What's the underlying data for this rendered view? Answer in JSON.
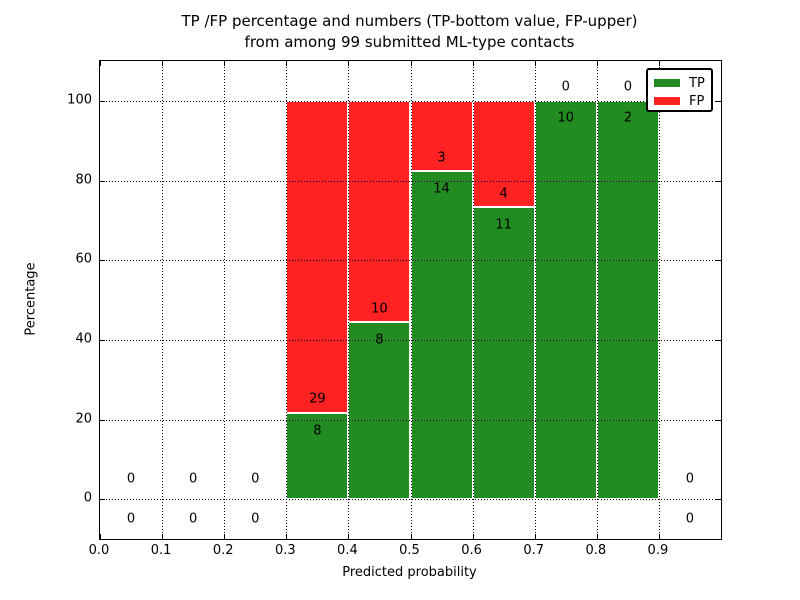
{
  "chart_data": {
    "type": "bar",
    "stacked": true,
    "title_lines": [
      "TP /FP percentage and numbers (TP-bottom value, FP-upper)",
      "from among 99 submitted ML-type contacts"
    ],
    "xlabel": "Predicted probability",
    "ylabel": "Percentage",
    "xlim": [
      0.0,
      1.0
    ],
    "ylim": [
      -10,
      110
    ],
    "xtick_values": [
      0.0,
      0.1,
      0.2,
      0.3,
      0.4,
      0.5,
      0.6,
      0.7,
      0.8,
      0.9
    ],
    "xtick_labels": [
      "0.0",
      "0.1",
      "0.2",
      "0.3",
      "0.4",
      "0.5",
      "0.6",
      "0.7",
      "0.8",
      "0.9"
    ],
    "ytick_values": [
      0,
      20,
      40,
      60,
      80,
      100
    ],
    "ytick_labels": [
      "0",
      "20",
      "40",
      "60",
      "80",
      "100"
    ],
    "grid": "dotted",
    "colors": {
      "tp": "#228b22",
      "fp": "#ff2222",
      "bar_edge": "#ffffff",
      "grid": "#000000"
    },
    "legend": {
      "position": "upper right",
      "entries": [
        {
          "label": "TP",
          "color": "#228b22"
        },
        {
          "label": "FP",
          "color": "#ff2222"
        }
      ]
    },
    "bins": [
      {
        "range": [
          0.0,
          0.1
        ],
        "tp": 0,
        "fp": 0
      },
      {
        "range": [
          0.1,
          0.2
        ],
        "tp": 0,
        "fp": 0
      },
      {
        "range": [
          0.2,
          0.3
        ],
        "tp": 0,
        "fp": 0
      },
      {
        "range": [
          0.3,
          0.4
        ],
        "tp": 8,
        "fp": 29
      },
      {
        "range": [
          0.4,
          0.5
        ],
        "tp": 8,
        "fp": 10
      },
      {
        "range": [
          0.5,
          0.6
        ],
        "tp": 14,
        "fp": 3
      },
      {
        "range": [
          0.6,
          0.7
        ],
        "tp": 11,
        "fp": 4
      },
      {
        "range": [
          0.7,
          0.8
        ],
        "tp": 10,
        "fp": 0
      },
      {
        "range": [
          0.8,
          0.9
        ],
        "tp": 2,
        "fp": 0
      },
      {
        "range": [
          0.9,
          1.0
        ],
        "tp": 0,
        "fp": 0
      }
    ]
  }
}
